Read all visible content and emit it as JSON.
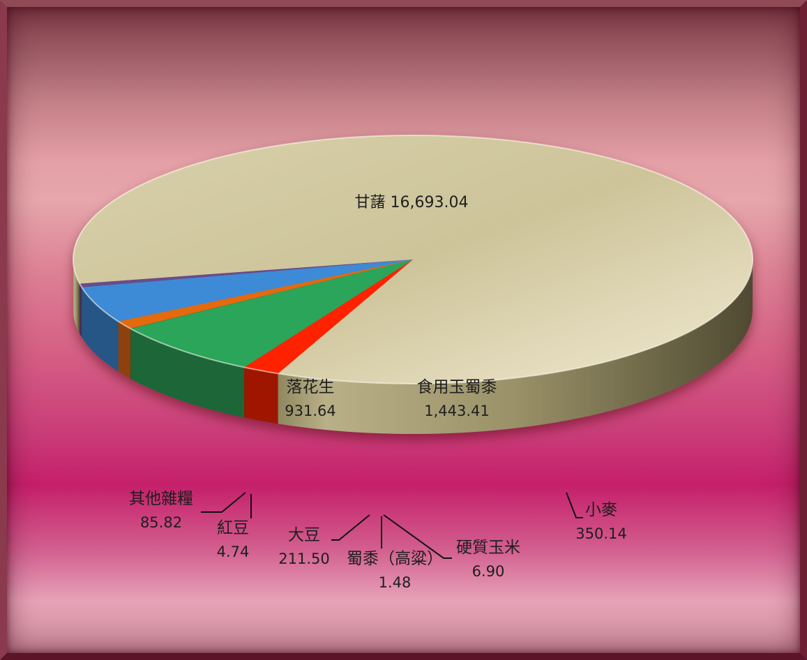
{
  "chart_data": {
    "type": "pie",
    "title": "",
    "categories": [
      "甘藷",
      "落花生",
      "紅豆",
      "其他雜糧",
      "大豆",
      "蜀黍（高粱）",
      "硬質玉米",
      "食用玉蜀黍",
      "小麥"
    ],
    "values": [
      16693.04,
      931.64,
      4.74,
      85.82,
      211.5,
      1.48,
      6.9,
      1443.41,
      350.14
    ],
    "colors": {
      "甘藷": "#cfc7a0",
      "落花生": "#3d8ad6",
      "紅豆": "#4b3868",
      "其他雜糧": "#6a4c8c",
      "大豆": "#e36b0c",
      "蜀黍（高粱）": "#e07a1a",
      "硬質玉米": "#1f7a42",
      "食用玉蜀黍": "#2aa55a",
      "小麥": "#ff2400"
    },
    "labels": [
      {
        "name": "甘藷",
        "value": "16,693.04"
      },
      {
        "name": "落花生",
        "value": "931.64"
      },
      {
        "name": "食用玉蜀黍",
        "value": "1,443.41"
      },
      {
        "name": "小麥",
        "value": "350.14"
      },
      {
        "name": "其他雜糧",
        "value": "85.82"
      },
      {
        "name": "紅豆",
        "value": "4.74"
      },
      {
        "name": "大豆",
        "value": "211.50"
      },
      {
        "name": "蜀黍（高粱）",
        "value": "1.48"
      },
      {
        "name": "硬質玉米",
        "value": "6.90"
      }
    ],
    "legend": "none",
    "style": "3d-pie"
  }
}
